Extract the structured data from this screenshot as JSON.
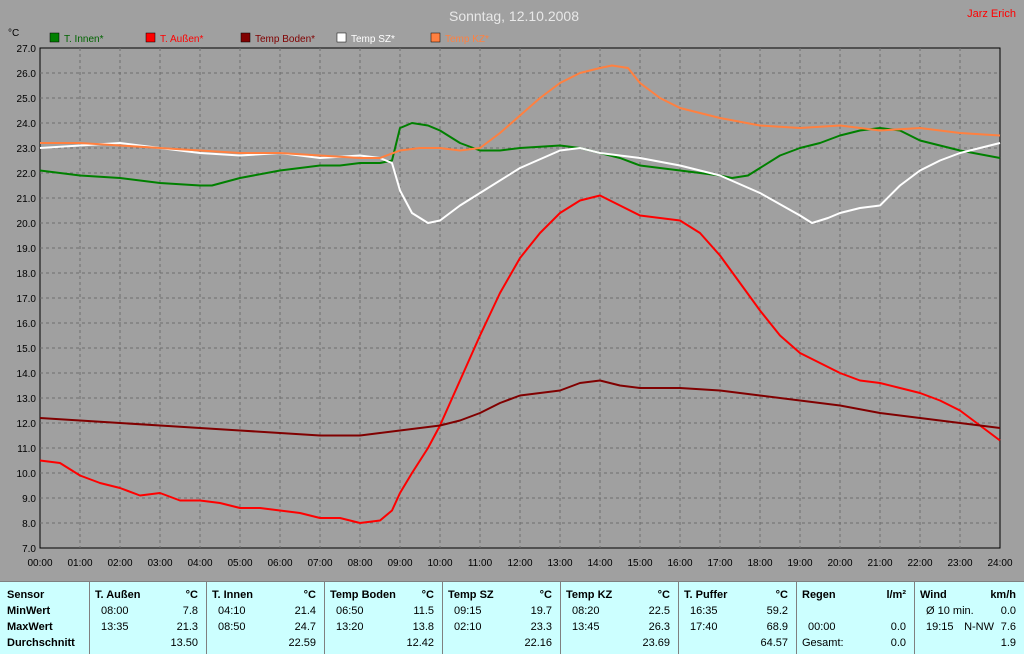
{
  "title": "Sonntag, 12.10.2008",
  "author": "Jarz Erich",
  "colors": {
    "background": "#a0a0a0",
    "plot_bg": "#a0a0a0",
    "grid": "#6e6e6e",
    "title": "#e8e8e8",
    "author": "#ff0000",
    "stats_bg": "#ccffff"
  },
  "chart_data": {
    "type": "line",
    "ylabel": "°C",
    "ylim": [
      7.0,
      27.0
    ],
    "yticks": [
      "7.0",
      "8.0",
      "9.0",
      "10.0",
      "11.0",
      "12.0",
      "13.0",
      "14.0",
      "15.0",
      "16.0",
      "17.0",
      "18.0",
      "19.0",
      "20.0",
      "21.0",
      "22.0",
      "23.0",
      "24.0",
      "25.0",
      "26.0",
      "27.0"
    ],
    "xlim": [
      0,
      24
    ],
    "xticks": [
      "00:00",
      "01:00",
      "02:00",
      "03:00",
      "04:00",
      "05:00",
      "06:00",
      "07:00",
      "08:00",
      "09:00",
      "10:00",
      "11:00",
      "12:00",
      "13:00",
      "14:00",
      "15:00",
      "16:00",
      "17:00",
      "18:00",
      "19:00",
      "20:00",
      "21:00",
      "22:00",
      "23:00",
      "24:00"
    ],
    "grid": true,
    "legend_position": "top",
    "series": [
      {
        "name": "T. Innen*",
        "color": "#008000",
        "x": [
          0,
          1,
          2,
          3,
          4,
          4.3,
          5,
          6,
          7,
          7.5,
          8,
          8.5,
          8.8,
          9,
          9.3,
          9.7,
          10,
          10.5,
          11,
          11.5,
          12,
          13,
          13.5,
          14,
          14.5,
          15,
          16,
          17,
          17.3,
          17.7,
          18,
          18.5,
          19,
          19.5,
          20,
          20.5,
          21,
          21.5,
          22,
          23,
          24
        ],
        "y": [
          22.1,
          21.9,
          21.8,
          21.6,
          21.5,
          21.5,
          21.8,
          22.1,
          22.3,
          22.3,
          22.4,
          22.4,
          22.5,
          23.8,
          24.0,
          23.9,
          23.7,
          23.2,
          22.9,
          22.9,
          23.0,
          23.1,
          23.0,
          22.8,
          22.6,
          22.3,
          22.1,
          21.9,
          21.8,
          21.9,
          22.2,
          22.7,
          23.0,
          23.2,
          23.5,
          23.7,
          23.8,
          23.7,
          23.3,
          22.9,
          22.6
        ]
      },
      {
        "name": "T. Außen*",
        "color": "#ff0000",
        "x": [
          0,
          0.5,
          1,
          1.5,
          2,
          2.5,
          3,
          3.5,
          4,
          4.5,
          5,
          5.5,
          6,
          6.5,
          7,
          7.5,
          8,
          8.5,
          8.8,
          9,
          9.3,
          9.7,
          10,
          10.5,
          11,
          11.5,
          12,
          12.5,
          13,
          13.5,
          14,
          14.5,
          15,
          15.5,
          16,
          16.5,
          17,
          17.5,
          18,
          18.5,
          19,
          19.5,
          20,
          20.5,
          21,
          21.5,
          22,
          22.5,
          23,
          23.5,
          24
        ],
        "y": [
          10.5,
          10.4,
          9.9,
          9.6,
          9.4,
          9.1,
          9.2,
          8.9,
          8.9,
          8.8,
          8.6,
          8.6,
          8.5,
          8.4,
          8.2,
          8.2,
          8.0,
          8.1,
          8.5,
          9.2,
          10.0,
          11.0,
          11.9,
          13.7,
          15.5,
          17.2,
          18.6,
          19.6,
          20.4,
          20.9,
          21.1,
          20.7,
          20.3,
          20.2,
          20.1,
          19.6,
          18.7,
          17.6,
          16.5,
          15.5,
          14.8,
          14.4,
          14.0,
          13.7,
          13.6,
          13.4,
          13.2,
          12.9,
          12.5,
          11.9,
          11.3
        ]
      },
      {
        "name": "Temp Boden*",
        "color": "#800000",
        "x": [
          0,
          1,
          2,
          3,
          4,
          5,
          6,
          7,
          8,
          8.5,
          9,
          10,
          10.5,
          11,
          11.5,
          12,
          12.5,
          13,
          13.5,
          14,
          14.5,
          15,
          16,
          17,
          18,
          19,
          20,
          21,
          22,
          23,
          24
        ],
        "y": [
          12.2,
          12.1,
          12.0,
          11.9,
          11.8,
          11.7,
          11.6,
          11.5,
          11.5,
          11.6,
          11.7,
          11.9,
          12.1,
          12.4,
          12.8,
          13.1,
          13.2,
          13.3,
          13.6,
          13.7,
          13.5,
          13.4,
          13.4,
          13.3,
          13.1,
          12.9,
          12.7,
          12.4,
          12.2,
          12.0,
          11.8
        ]
      },
      {
        "name": "Temp SZ*",
        "color": "#ffffff",
        "x": [
          0,
          1,
          2,
          3,
          4,
          5,
          6,
          7,
          8,
          8.5,
          8.8,
          9,
          9.3,
          9.7,
          10,
          10.5,
          11,
          12,
          13,
          13.5,
          14,
          15,
          16,
          17,
          18,
          19,
          19.3,
          19.7,
          20,
          20.5,
          21,
          21.5,
          22,
          22.5,
          23,
          23.5,
          24
        ],
        "y": [
          23.0,
          23.1,
          23.2,
          23.0,
          22.8,
          22.7,
          22.8,
          22.6,
          22.7,
          22.6,
          22.4,
          21.3,
          20.4,
          20.0,
          20.1,
          20.7,
          21.2,
          22.2,
          22.9,
          23.0,
          22.8,
          22.6,
          22.3,
          21.9,
          21.2,
          20.3,
          20.0,
          20.2,
          20.4,
          20.6,
          20.7,
          21.5,
          22.1,
          22.5,
          22.8,
          23.0,
          23.2
        ]
      },
      {
        "name": "Temp KZ*",
        "color": "#ff8040",
        "x": [
          0,
          1,
          2,
          3,
          4,
          5,
          6,
          7,
          8,
          8.5,
          9,
          9.5,
          10,
          10.5,
          11,
          11.5,
          12,
          12.5,
          13,
          13.5,
          14,
          14.3,
          14.7,
          15,
          15.5,
          16,
          17,
          18,
          19,
          20,
          21,
          22,
          23,
          24
        ],
        "y": [
          23.2,
          23.2,
          23.1,
          23.0,
          22.9,
          22.8,
          22.8,
          22.7,
          22.6,
          22.6,
          22.9,
          23.0,
          23.0,
          22.9,
          23.0,
          23.6,
          24.3,
          25.0,
          25.6,
          26.0,
          26.2,
          26.3,
          26.2,
          25.6,
          25.0,
          24.6,
          24.2,
          23.9,
          23.8,
          23.9,
          23.7,
          23.8,
          23.6,
          23.5
        ]
      }
    ]
  },
  "stats": {
    "sensor": {
      "header": "Sensor",
      "min": "MinWert",
      "max": "MaxWert",
      "avg": "Durchschnitt"
    },
    "columns": [
      {
        "name": "T. Außen",
        "unit": "°C",
        "min_time": "08:00",
        "min_val": "7.8",
        "max_time": "13:35",
        "max_val": "21.3",
        "avg": "13.50"
      },
      {
        "name": "T. Innen",
        "unit": "°C",
        "min_time": "04:10",
        "min_val": "21.4",
        "max_time": "08:50",
        "max_val": "24.7",
        "avg": "22.59"
      },
      {
        "name": "Temp Boden",
        "unit": "°C",
        "min_time": "06:50",
        "min_val": "11.5",
        "max_time": "13:20",
        "max_val": "13.8",
        "avg": "12.42"
      },
      {
        "name": "Temp SZ",
        "unit": "°C",
        "min_time": "09:15",
        "min_val": "19.7",
        "max_time": "02:10",
        "max_val": "23.3",
        "avg": "22.16"
      },
      {
        "name": "Temp KZ",
        "unit": "°C",
        "min_time": "08:20",
        "min_val": "22.5",
        "max_time": "13:45",
        "max_val": "26.3",
        "avg": "23.69"
      },
      {
        "name": "T. Puffer",
        "unit": "°C",
        "min_time": "16:35",
        "min_val": "59.2",
        "max_time": "17:40",
        "max_val": "68.9",
        "avg": "64.57"
      },
      {
        "name": "Regen",
        "unit": "l/m²",
        "min_time": "",
        "min_val": "",
        "max_time": "00:00",
        "max_val": "0.0",
        "avg_label": "Gesamt:",
        "avg": "0.0"
      },
      {
        "name": "Wind",
        "unit": "km/h",
        "min_time": "Ø 10 min.",
        "min_val": "0.0",
        "max_time": "19:15",
        "max_extra": "N-NW",
        "max_val": "7.6",
        "avg": "1.9"
      }
    ]
  }
}
